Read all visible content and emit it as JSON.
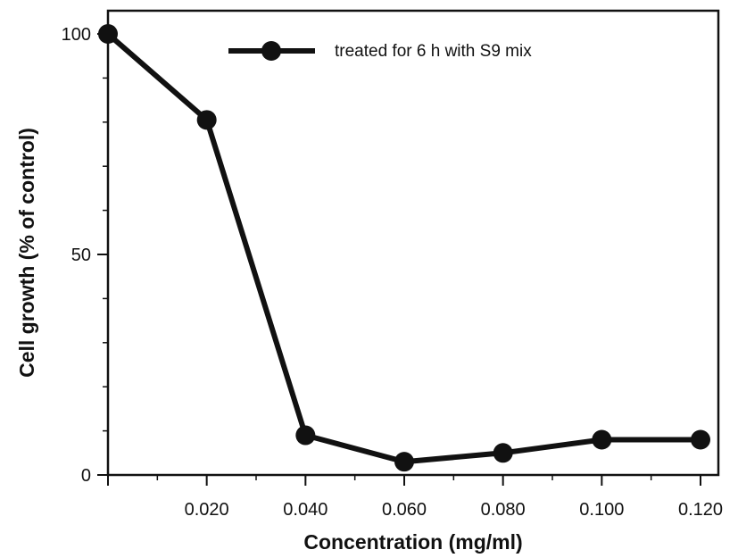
{
  "chart_data": {
    "type": "line",
    "title": "",
    "xlabel": "Concentration (mg/ml)",
    "ylabel": "Cell growth (% of control)",
    "xlim": [
      0,
      0.12
    ],
    "ylim": [
      0,
      100
    ],
    "x_ticks": [
      {
        "value": 0.02,
        "label": "0.020"
      },
      {
        "value": 0.04,
        "label": "0.040"
      },
      {
        "value": 0.06,
        "label": "0.060"
      },
      {
        "value": 0.08,
        "label": "0.080"
      },
      {
        "value": 0.1,
        "label": "0.100"
      },
      {
        "value": 0.12,
        "label": "0.120"
      }
    ],
    "y_ticks": [
      {
        "value": 0,
        "label": "0"
      },
      {
        "value": 50,
        "label": "50"
      },
      {
        "value": 100,
        "label": "100"
      }
    ],
    "x_minor_step": 0.01,
    "y_minor_step": 10,
    "grid": false,
    "legend_position": "top-center",
    "series": [
      {
        "name": "treated for 6 h with S9 mix",
        "color": "#111111",
        "marker": "filled-circle",
        "x": [
          0,
          0.02,
          0.04,
          0.06,
          0.08,
          0.1,
          0.12
        ],
        "values": [
          100,
          80.5,
          9,
          3,
          5,
          8,
          8
        ]
      }
    ]
  }
}
